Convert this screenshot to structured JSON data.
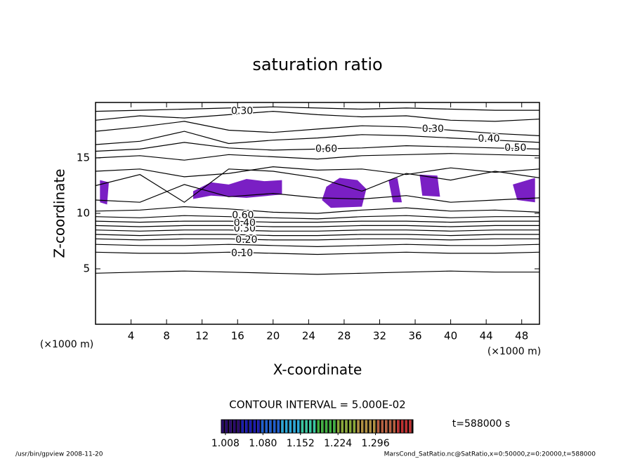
{
  "chart_data": {
    "type": "contour",
    "title": "saturation ratio",
    "x_label": "X-coordinate",
    "y_label": "Z-coordinate",
    "x_unit": "(×1000 m)",
    "y_unit": "(×1000 m)",
    "xlim": [
      0,
      50
    ],
    "ylim": [
      0,
      20
    ],
    "xticks": [
      4,
      8,
      12,
      16,
      20,
      24,
      28,
      32,
      36,
      40,
      44,
      48
    ],
    "yticks": [
      5,
      10,
      15
    ],
    "line_color": "#000000",
    "contours": {
      "x": [
        0,
        5,
        10,
        15,
        20,
        25,
        30,
        35,
        40,
        45,
        50
      ],
      "levels": [
        [
          4.6,
          4.7,
          4.8,
          4.7,
          4.6,
          4.5,
          4.6,
          4.7,
          4.8,
          4.7,
          4.7
        ],
        [
          6.5,
          6.4,
          6.4,
          6.5,
          6.4,
          6.3,
          6.4,
          6.5,
          6.4,
          6.4,
          6.5
        ],
        [
          7.2,
          7.1,
          7.1,
          7.2,
          7.1,
          7.0,
          7.1,
          7.2,
          7.1,
          7.1,
          7.2
        ],
        [
          7.7,
          7.6,
          7.7,
          7.7,
          7.6,
          7.6,
          7.7,
          7.7,
          7.6,
          7.7,
          7.7
        ],
        [
          8.1,
          8.0,
          8.1,
          8.1,
          8.0,
          8.0,
          8.1,
          8.1,
          8.0,
          8.1,
          8.1
        ],
        [
          8.5,
          8.4,
          8.5,
          8.5,
          8.4,
          8.4,
          8.5,
          8.5,
          8.4,
          8.5,
          8.5
        ],
        [
          8.9,
          8.8,
          8.9,
          8.9,
          8.8,
          8.8,
          8.9,
          8.9,
          8.8,
          8.9,
          8.9
        ],
        [
          9.3,
          9.2,
          9.3,
          9.3,
          9.2,
          9.2,
          9.3,
          9.3,
          9.2,
          9.3,
          9.3
        ],
        [
          9.7,
          9.6,
          9.8,
          9.7,
          9.6,
          9.5,
          9.7,
          9.8,
          9.6,
          9.7,
          9.7
        ],
        [
          10.2,
          10.3,
          10.6,
          10.4,
          10.1,
          10.0,
          10.3,
          10.5,
          10.2,
          10.3,
          10.1
        ],
        [
          11.2,
          11.0,
          12.6,
          11.5,
          11.8,
          11.4,
          11.3,
          11.6,
          11.0,
          11.2,
          11.4
        ],
        [
          12.5,
          13.5,
          11.0,
          14.0,
          13.8,
          13.2,
          12.0,
          13.6,
          13.0,
          13.8,
          13.2
        ],
        [
          13.8,
          14.0,
          13.3,
          13.6,
          14.2,
          13.9,
          14.0,
          13.5,
          14.1,
          13.7,
          14.0
        ],
        [
          15.0,
          15.2,
          14.8,
          15.3,
          15.1,
          14.9,
          15.2,
          15.3,
          15.4,
          15.3,
          15.2
        ],
        [
          15.6,
          15.8,
          16.4,
          15.9,
          15.7,
          15.8,
          15.9,
          16.1,
          16.0,
          15.9,
          15.8
        ],
        [
          16.2,
          16.5,
          17.4,
          16.3,
          16.6,
          16.8,
          17.1,
          17.0,
          16.8,
          16.6,
          16.4
        ],
        [
          17.4,
          17.8,
          18.3,
          17.5,
          17.3,
          17.6,
          17.9,
          17.8,
          17.5,
          17.2,
          17.0
        ],
        [
          18.4,
          18.8,
          18.6,
          18.9,
          19.2,
          18.9,
          18.7,
          18.8,
          18.4,
          18.3,
          18.5
        ],
        [
          19.2,
          19.3,
          19.4,
          19.5,
          19.6,
          19.5,
          19.4,
          19.5,
          19.4,
          19.3,
          19.3
        ]
      ]
    },
    "contour_labels": [
      {
        "text": "0.10",
        "x": 16.5,
        "z": 6.4
      },
      {
        "text": "0.20",
        "x": 17,
        "z": 7.6
      },
      {
        "text": "0.30",
        "x": 16.8,
        "z": 8.6
      },
      {
        "text": "0.40",
        "x": 16.8,
        "z": 9.1
      },
      {
        "text": "0.60",
        "x": 16.6,
        "z": 9.8
      },
      {
        "text": "0.30",
        "x": 38,
        "z": 17.6
      },
      {
        "text": "0.40",
        "x": 44.3,
        "z": 16.7
      },
      {
        "text": "0.50",
        "x": 47.3,
        "z": 15.9
      },
      {
        "text": "0.60",
        "x": 26,
        "z": 15.8
      },
      {
        "text": "0.30",
        "x": 16.5,
        "z": 19.2
      }
    ],
    "region_color": "#7a1fc4",
    "regions": [
      {
        "x": [
          0.5,
          1.5,
          1.3,
          0.5
        ],
        "z": [
          13,
          12.8,
          10.8,
          11
        ]
      },
      {
        "x": [
          11,
          13,
          15,
          17,
          19,
          21,
          21,
          17,
          13,
          11
        ],
        "z": [
          12,
          12.8,
          12.6,
          13.1,
          12.9,
          13.0,
          11.7,
          11.4,
          11.6,
          11.3
        ]
      },
      {
        "x": [
          26,
          27.5,
          29.5,
          30.5,
          30,
          26.5,
          25.5
        ],
        "z": [
          12.4,
          13.2,
          13.0,
          12.2,
          10.6,
          10.5,
          11.2
        ]
      },
      {
        "x": [
          33,
          34,
          34.5,
          33.5
        ],
        "z": [
          13,
          13.2,
          11,
          11
        ]
      },
      {
        "x": [
          36.5,
          38.5,
          38.8,
          36.8
        ],
        "z": [
          13.5,
          13.4,
          11.5,
          11.6
        ]
      },
      {
        "x": [
          47,
          49.5,
          49.5,
          47.5
        ],
        "z": [
          12.6,
          13.2,
          11.0,
          11.2
        ]
      }
    ],
    "contour_interval": "CONTOUR INTERVAL = 5.000E-02",
    "time_label": "t=588000 s",
    "colorbar": {
      "lim": [
        1.0,
        1.368
      ],
      "colors": [
        "#2a0a6e",
        "#1b1bb0",
        "#1f5fd0",
        "#2aa8d8",
        "#38c8a0",
        "#40b040",
        "#8aa838",
        "#b09040",
        "#b86040",
        "#c03030"
      ],
      "ticks": [
        1.008,
        {
          "value": 1.08,
          "label": "1.080"
        },
        1.152,
        1.224,
        1.296
      ]
    },
    "footer_left": "/usr/bin/gpview  2008-11-20",
    "footer_right": "MarsCond_SatRatio.nc@SatRatio,x=0:50000,z=0:20000,t=588000"
  }
}
